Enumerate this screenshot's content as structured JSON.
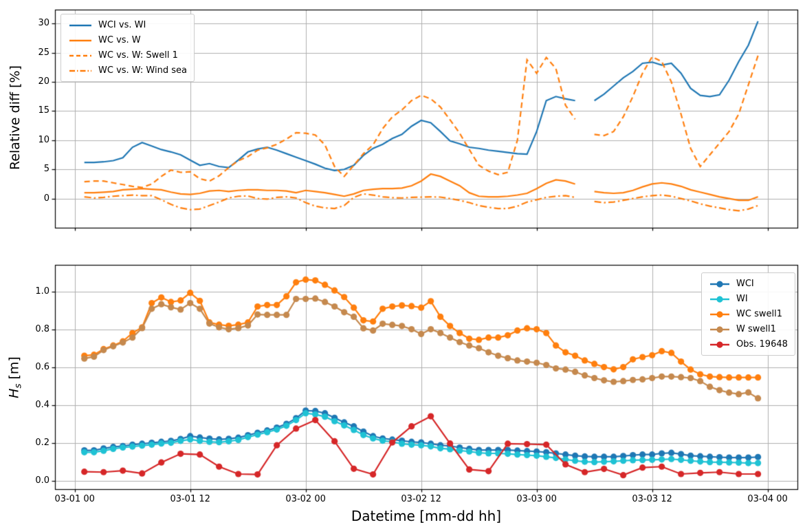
{
  "figure": {
    "background": "#ffffff",
    "grid_color": "#b0b0b0",
    "spine_color": "#000000"
  },
  "xaxis": {
    "label": "Datetime [mm-dd hh]",
    "xlim": [
      -2.05,
      75.1
    ],
    "tick_hours": [
      0,
      12,
      24,
      36,
      48,
      60,
      72
    ],
    "tick_labels": [
      "03-01 00",
      "03-01 12",
      "03-02 00",
      "03-02 12",
      "03-03 00",
      "03-03 12",
      "03-04 00"
    ]
  },
  "chart_data": [
    {
      "id": "relative-diff",
      "type": "line",
      "title": "",
      "xlabel": "",
      "ylabel": "Relative diff [%]",
      "ylim": [
        -5.0,
        32.4
      ],
      "yticks": [
        0,
        5,
        10,
        15,
        20,
        25,
        30
      ],
      "grid": true,
      "legend_position": "upper left",
      "x_start_hour": 1,
      "x_step_hours": 1,
      "series": [
        {
          "name": "WCI vs. WI",
          "color": "#1f77b4",
          "style": "solid",
          "values": [
            6.2,
            6.2,
            6.3,
            6.5,
            7.0,
            8.8,
            9.6,
            9.0,
            8.4,
            8.0,
            7.5,
            6.6,
            5.7,
            6.0,
            5.5,
            5.3,
            6.6,
            8.0,
            8.5,
            8.8,
            8.3,
            7.7,
            7.1,
            6.5,
            5.9,
            5.2,
            4.8,
            5.0,
            5.7,
            7.4,
            8.6,
            9.3,
            10.3,
            11.0,
            12.4,
            13.4,
            13.0,
            11.5,
            9.9,
            9.4,
            8.8,
            8.6,
            8.3,
            8.1,
            7.9,
            7.7,
            7.6,
            11.5,
            16.8,
            17.5,
            17.1,
            16.8,
            null,
            16.8,
            17.9,
            19.3,
            20.7,
            21.8,
            23.2,
            23.4,
            22.9,
            23.2,
            21.5,
            18.9,
            17.7,
            17.5,
            17.8,
            20.3,
            23.5,
            26.3,
            30.4
          ]
        },
        {
          "name": "WC vs. W",
          "color": "#ff7f0e",
          "style": "solid",
          "values": [
            1.0,
            1.0,
            1.1,
            1.2,
            1.5,
            1.6,
            1.7,
            1.6,
            1.5,
            1.1,
            0.8,
            0.7,
            0.9,
            1.3,
            1.4,
            1.2,
            1.4,
            1.5,
            1.5,
            1.4,
            1.4,
            1.3,
            1.0,
            1.4,
            1.2,
            1.0,
            0.7,
            0.4,
            0.8,
            1.4,
            1.6,
            1.7,
            1.7,
            1.8,
            2.2,
            3.0,
            4.2,
            3.8,
            3.0,
            2.2,
            1.0,
            0.4,
            0.3,
            0.3,
            0.4,
            0.6,
            0.9,
            1.7,
            2.6,
            3.2,
            3.0,
            2.5,
            null,
            1.2,
            1.0,
            0.9,
            1.0,
            1.4,
            2.0,
            2.5,
            2.7,
            2.5,
            2.1,
            1.5,
            1.1,
            0.7,
            0.3,
            0.0,
            -0.3,
            -0.3,
            0.3
          ]
        },
        {
          "name": "WC vs. W: Swell 1",
          "color": "#ff7f0e",
          "style": "dashed",
          "values": [
            2.9,
            3.0,
            3.0,
            2.7,
            2.4,
            2.1,
            1.9,
            2.5,
            3.8,
            4.9,
            4.5,
            4.6,
            3.4,
            3.0,
            3.9,
            5.3,
            6.5,
            7.2,
            8.3,
            8.7,
            9.3,
            10.2,
            11.3,
            11.2,
            10.9,
            9.2,
            5.5,
            3.8,
            5.7,
            7.7,
            9.2,
            12.0,
            14.0,
            15.2,
            16.8,
            17.7,
            17.1,
            15.7,
            13.5,
            11.2,
            8.4,
            5.7,
            4.7,
            4.1,
            4.5,
            10.0,
            23.8,
            21.5,
            24.2,
            22.3,
            16.0,
            13.6,
            null,
            11.0,
            10.8,
            11.5,
            14.0,
            17.5,
            21.5,
            24.3,
            23.5,
            20.0,
            14.5,
            8.6,
            5.5,
            7.5,
            9.5,
            11.5,
            14.5,
            19.5,
            24.5
          ]
        },
        {
          "name": "WC vs. W: Wind sea",
          "color": "#ff7f0e",
          "style": "dashdot",
          "values": [
            0.3,
            0.1,
            0.2,
            0.4,
            0.5,
            0.6,
            0.5,
            0.5,
            -0.2,
            -1.0,
            -1.6,
            -1.9,
            -1.8,
            -1.2,
            -0.6,
            0.1,
            0.4,
            0.45,
            0.0,
            -0.1,
            0.2,
            0.3,
            0.1,
            -0.7,
            -1.3,
            -1.6,
            -1.7,
            -1.2,
            0.2,
            0.8,
            0.6,
            0.3,
            0.15,
            0.1,
            0.2,
            0.25,
            0.3,
            0.25,
            0.0,
            -0.3,
            -0.7,
            -1.2,
            -1.5,
            -1.7,
            -1.7,
            -1.3,
            -0.6,
            -0.2,
            0.2,
            0.4,
            0.5,
            0.2,
            null,
            -0.5,
            -0.7,
            -0.6,
            -0.3,
            0.0,
            0.3,
            0.5,
            0.6,
            0.4,
            0.0,
            -0.4,
            -0.9,
            -1.3,
            -1.6,
            -1.9,
            -2.1,
            -1.8,
            -1.2
          ]
        }
      ]
    },
    {
      "id": "hs",
      "type": "line-markers",
      "title": "",
      "xlabel": "Datetime [mm-dd hh]",
      "ylabel": "Hs [m]",
      "ylabel_parts": {
        "italic": "H",
        "sub": "s",
        "unit": " [m]"
      },
      "ylim": [
        -0.045,
        1.14
      ],
      "yticks": [
        0.0,
        0.2,
        0.4,
        0.6,
        0.8,
        1.0
      ],
      "grid": true,
      "legend_position": "upper right",
      "series": [
        {
          "name": "WCI",
          "color": "#1f77b4",
          "x_start": 1,
          "x_step": 1,
          "values": [
            0.16,
            0.16,
            0.17,
            0.178,
            0.183,
            0.19,
            0.195,
            0.2,
            0.205,
            0.21,
            0.22,
            0.235,
            0.228,
            0.222,
            0.218,
            0.221,
            0.227,
            0.24,
            0.253,
            0.265,
            0.28,
            0.3,
            0.33,
            0.37,
            0.368,
            0.356,
            0.332,
            0.308,
            0.287,
            0.259,
            0.235,
            0.223,
            0.217,
            0.211,
            0.205,
            0.202,
            0.195,
            0.187,
            0.183,
            0.175,
            0.168,
            0.162,
            0.162,
            0.162,
            0.162,
            0.159,
            0.156,
            0.154,
            0.15,
            0.144,
            0.138,
            0.132,
            0.128,
            0.126,
            0.126,
            0.126,
            0.13,
            0.135,
            0.138,
            0.138,
            0.144,
            0.147,
            0.14,
            0.132,
            0.129,
            0.126,
            0.124,
            0.122,
            0.122,
            0.122,
            0.125
          ]
        },
        {
          "name": "WI",
          "color": "#1fc2d4",
          "x_start": 1,
          "x_step": 1,
          "values": [
            0.15,
            0.15,
            0.158,
            0.168,
            0.175,
            0.18,
            0.185,
            0.19,
            0.196,
            0.2,
            0.21,
            0.218,
            0.21,
            0.205,
            0.203,
            0.208,
            0.215,
            0.23,
            0.243,
            0.256,
            0.27,
            0.29,
            0.32,
            0.356,
            0.35,
            0.338,
            0.314,
            0.292,
            0.268,
            0.241,
            0.223,
            0.211,
            0.205,
            0.195,
            0.19,
            0.187,
            0.181,
            0.171,
            0.166,
            0.159,
            0.154,
            0.147,
            0.144,
            0.144,
            0.142,
            0.138,
            0.135,
            0.132,
            0.126,
            0.12,
            0.112,
            0.105,
            0.1,
            0.098,
            0.1,
            0.102,
            0.105,
            0.108,
            0.109,
            0.11,
            0.112,
            0.114,
            0.11,
            0.105,
            0.101,
            0.098,
            0.097,
            0.096,
            0.095,
            0.093,
            0.093
          ]
        },
        {
          "name": "WC swell1",
          "color": "#ff7f0e",
          "x_start": 1,
          "x_step": 1,
          "values": [
            0.66,
            0.665,
            0.695,
            0.714,
            0.736,
            0.78,
            0.81,
            0.938,
            0.968,
            0.944,
            0.952,
            0.992,
            0.95,
            0.836,
            0.824,
            0.818,
            0.824,
            0.836,
            0.92,
            0.928,
            0.928,
            0.974,
            1.048,
            1.062,
            1.058,
            1.035,
            1.005,
            0.97,
            0.914,
            0.847,
            0.841,
            0.908,
            0.92,
            0.926,
            0.922,
            0.914,
            0.948,
            0.866,
            0.817,
            0.78,
            0.75,
            0.744,
            0.756,
            0.756,
            0.768,
            0.793,
            0.805,
            0.8,
            0.78,
            0.714,
            0.678,
            0.66,
            0.635,
            0.617,
            0.6,
            0.588,
            0.6,
            0.641,
            0.653,
            0.663,
            0.684,
            0.675,
            0.629,
            0.587,
            0.562,
            0.55,
            0.547,
            0.545,
            0.545,
            0.545,
            0.545
          ]
        },
        {
          "name": "W swell1",
          "color": "#c5894e",
          "x_start": 1,
          "x_step": 1,
          "values": [
            0.645,
            0.655,
            0.69,
            0.71,
            0.73,
            0.756,
            0.806,
            0.908,
            0.932,
            0.916,
            0.904,
            0.938,
            0.908,
            0.83,
            0.81,
            0.8,
            0.806,
            0.82,
            0.878,
            0.876,
            0.876,
            0.876,
            0.96,
            0.96,
            0.962,
            0.944,
            0.92,
            0.89,
            0.866,
            0.805,
            0.793,
            0.829,
            0.823,
            0.817,
            0.8,
            0.775,
            0.8,
            0.78,
            0.756,
            0.732,
            0.714,
            0.7,
            0.678,
            0.66,
            0.647,
            0.635,
            0.629,
            0.623,
            0.611,
            0.593,
            0.587,
            0.575,
            0.556,
            0.542,
            0.53,
            0.522,
            0.526,
            0.532,
            0.535,
            0.542,
            0.55,
            0.55,
            0.547,
            0.542,
            0.526,
            0.496,
            0.478,
            0.465,
            0.457,
            0.466,
            0.435
          ]
        },
        {
          "name": "Obs. 19648",
          "color": "#d62728",
          "x_start": 1,
          "x_step": 2,
          "values": [
            0.047,
            0.045,
            0.053,
            0.038,
            0.096,
            0.142,
            0.138,
            0.074,
            0.035,
            0.033,
            0.187,
            0.275,
            0.32,
            0.208,
            0.063,
            0.033,
            0.202,
            0.287,
            0.34,
            0.196,
            0.059,
            0.05,
            0.195,
            0.193,
            0.19,
            0.086,
            0.045,
            0.062,
            0.029,
            0.069,
            0.074,
            0.035,
            0.041,
            0.045,
            0.035,
            0.035
          ]
        }
      ]
    }
  ]
}
